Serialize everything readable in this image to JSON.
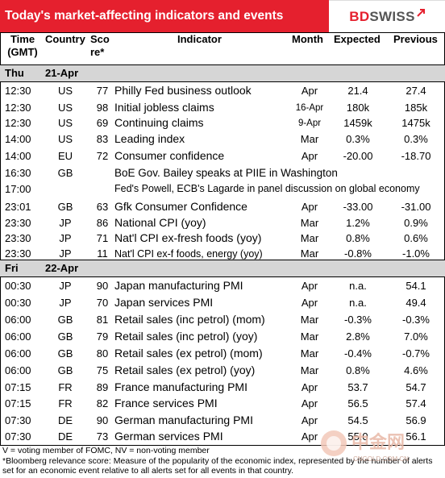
{
  "header": {
    "title": "Today's market-affecting indicators and events",
    "logo_bd": "BD",
    "logo_swiss": "SWISS"
  },
  "columns": {
    "time": [
      "Time",
      "(GMT)"
    ],
    "country": "Country",
    "score": [
      "Sco",
      "re*"
    ],
    "indicator": "Indicator",
    "month": "Month",
    "expected": "Expected",
    "previous": "Previous"
  },
  "days": [
    {
      "day": "Thu",
      "date": "21-Apr"
    },
    {
      "day": "Fri",
      "date": "22-Apr"
    }
  ],
  "thu_rows": [
    {
      "time": "12:30",
      "country": "US",
      "score": "77",
      "indicator": "Philly Fed business outlook",
      "month": "Apr",
      "expected": "21.4",
      "previous": "27.4"
    },
    {
      "time": "12:30",
      "country": "US",
      "score": "98",
      "indicator": "Initial jobless claims",
      "month": "16-Apr",
      "expected": "180k",
      "previous": "185k"
    },
    {
      "time": "12:30",
      "country": "US",
      "score": "69",
      "indicator": "Continuing claims",
      "month": "9-Apr",
      "expected": "1459k",
      "previous": "1475k"
    },
    {
      "time": "14:00",
      "country": "US",
      "score": "83",
      "indicator": "Leading index",
      "month": "Mar",
      "expected": "0.3%",
      "previous": "0.3%"
    },
    {
      "time": "14:00",
      "country": "EU",
      "score": "72",
      "indicator": "Consumer confidence",
      "month": "Apr",
      "expected": "-20.00",
      "previous": "-18.70"
    },
    {
      "time": "16:30",
      "country": "GB",
      "event": "BoE Gov. Bailey speaks at PIIE in Washington"
    },
    {
      "time": "17:00",
      "event": "Fed's Powell, ECB's Lagarde in panel discussion on global economy"
    },
    {
      "time": "23:01",
      "country": "GB",
      "score": "63",
      "indicator": "Gfk Consumer Confidence",
      "month": "Apr",
      "expected": "-33.00",
      "previous": "-31.00"
    },
    {
      "time": "23:30",
      "country": "JP",
      "score": "86",
      "indicator": "National CPI (yoy)",
      "month": "Mar",
      "expected": "1.2%",
      "previous": "0.9%"
    },
    {
      "time": "23:30",
      "country": "JP",
      "score": "71",
      "indicator": "Nat'l CPI ex-fresh foods (yoy)",
      "month": "Mar",
      "expected": "0.8%",
      "previous": "0.6%"
    },
    {
      "time": "23:30",
      "country": "JP",
      "score": "11",
      "indicator": "Nat'l CPI ex-f foods, energy (yoy)",
      "month": "Mar",
      "expected": "-0.8%",
      "previous": "-1.0%"
    }
  ],
  "fri_rows": [
    {
      "time": "00:30",
      "country": "JP",
      "score": "90",
      "indicator": "Japan manufacturing PMI",
      "month": "Apr",
      "expected": "n.a.",
      "previous": "54.1"
    },
    {
      "time": "00:30",
      "country": "JP",
      "score": "70",
      "indicator": "Japan services PMI",
      "month": "Apr",
      "expected": "n.a.",
      "previous": "49.4"
    },
    {
      "time": "06:00",
      "country": "GB",
      "score": "81",
      "indicator": "Retail sales (inc petrol) (mom)",
      "month": "Mar",
      "expected": "-0.3%",
      "previous": "-0.3%"
    },
    {
      "time": "06:00",
      "country": "GB",
      "score": "79",
      "indicator": "Retail sales (inc petrol) (yoy)",
      "month": "Mar",
      "expected": "2.8%",
      "previous": "7.0%"
    },
    {
      "time": "06:00",
      "country": "GB",
      "score": "80",
      "indicator": "Retail sales (ex petrol) (mom)",
      "month": "Mar",
      "expected": "-0.4%",
      "previous": "-0.7%"
    },
    {
      "time": "06:00",
      "country": "GB",
      "score": "75",
      "indicator": "Retail sales (ex petrol) (yoy)",
      "month": "Mar",
      "expected": "0.8%",
      "previous": "4.6%"
    },
    {
      "time": "07:15",
      "country": "FR",
      "score": "89",
      "indicator": "France manufacturing PMI",
      "month": "Apr",
      "expected": "53.7",
      "previous": "54.7"
    },
    {
      "time": "07:15",
      "country": "FR",
      "score": "82",
      "indicator": "France services PMI",
      "month": "Apr",
      "expected": "56.5",
      "previous": "57.4"
    },
    {
      "time": "07:30",
      "country": "DE",
      "score": "90",
      "indicator": "German manufacturing PMI",
      "month": "Apr",
      "expected": "54.5",
      "previous": "56.9"
    },
    {
      "time": "07:30",
      "country": "DE",
      "score": "73",
      "indicator": "German services PMI",
      "month": "Apr",
      "expected": "55.0",
      "previous": "56.1"
    }
  ],
  "footnotes": [
    "V = voting member of FOMC, NV = non-voting member",
    "*Bloomberg relevance score:  Measure of the popularity of the economic index, represented by the number of alerts set for an economic event relative to all alerts set for all events in that country."
  ],
  "watermark": {
    "text": "中金网",
    "url": "CNGOLD.COM.CN"
  },
  "colors": {
    "accent": "#e5202e",
    "day_band": "#d6d6d6"
  }
}
